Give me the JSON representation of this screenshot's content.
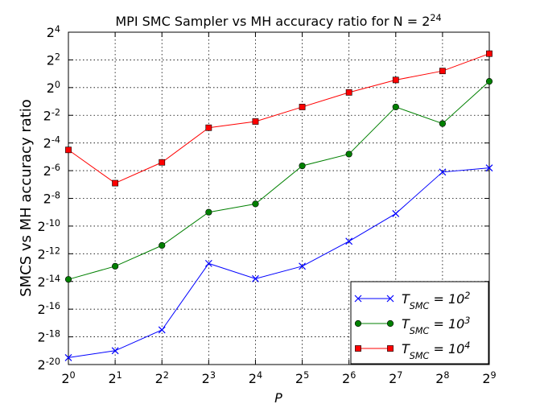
{
  "chart_data": {
    "type": "line",
    "title": "MPI SMC Sampler vs MH accuracy ratio for N = 2^{24}",
    "x_label": "P",
    "y_label": "SMCS vs MH accuracy ratio",
    "xscale": "log2",
    "yscale": "log2",
    "grid": true,
    "legend": "lower right",
    "x": [
      1,
      2,
      4,
      8,
      16,
      32,
      64,
      128,
      256,
      512
    ],
    "xlim": [
      1,
      512
    ],
    "ylim": [
      9.5367431640625e-07,
      16
    ],
    "xticks": [
      {
        "value": 1,
        "label": "2^{0}"
      },
      {
        "value": 2,
        "label": "2^{1}"
      },
      {
        "value": 4,
        "label": "2^{2}"
      },
      {
        "value": 8,
        "label": "2^{3}"
      },
      {
        "value": 16,
        "label": "2^{4}"
      },
      {
        "value": 32,
        "label": "2^{5}"
      },
      {
        "value": 64,
        "label": "2^{6}"
      },
      {
        "value": 128,
        "label": "2^{7}"
      },
      {
        "value": 256,
        "label": "2^{8}"
      },
      {
        "value": 512,
        "label": "2^{9}"
      }
    ],
    "yticks": [
      {
        "value": 9.5367431640625e-07,
        "label": "2^{-20}"
      },
      {
        "value": 3.814697265625e-06,
        "label": "2^{-18}"
      },
      {
        "value": 1.52587890625e-05,
        "label": "2^{-16}"
      },
      {
        "value": 6.103515625e-05,
        "label": "2^{-14}"
      },
      {
        "value": 0.000244140625,
        "label": "2^{-12}"
      },
      {
        "value": 0.0009765625,
        "label": "2^{-10}"
      },
      {
        "value": 0.00390625,
        "label": "2^{-8}"
      },
      {
        "value": 0.015625,
        "label": "2^{-6}"
      },
      {
        "value": 0.0625,
        "label": "2^{-4}"
      },
      {
        "value": 0.25,
        "label": "2^{-2}"
      },
      {
        "value": 1,
        "label": "2^{0}"
      },
      {
        "value": 4,
        "label": "2^{2}"
      },
      {
        "value": 16,
        "label": "2^{4}"
      }
    ],
    "series": [
      {
        "name": "T_{SMC} = 10^{2}",
        "color": "#0000ff",
        "marker": "x",
        "values": [
          1.3487e-06,
          1.9073e-06,
          5.395e-06,
          0.00015028,
          7.011e-05,
          0.00013083,
          0.0004556,
          0.0018223,
          0.014578,
          0.017948
        ]
      },
      {
        "name": "T_{SMC} = 10^{3}",
        "color": "#008000",
        "marker": "o",
        "values": [
          6.772e-05,
          0.00013083,
          0.00037,
          0.0019531,
          0.00296,
          0.019916,
          0.035897,
          0.37893,
          0.16494,
          1.366
        ]
      },
      {
        "name": "T_{SMC} = 10^{4}",
        "color": "#ff0000",
        "marker": "s",
        "values": [
          0.044194,
          0.0083734,
          0.023683,
          0.13397,
          0.18301,
          0.37893,
          0.78458,
          1.4641,
          2.2974,
          5.4642
        ]
      }
    ]
  }
}
